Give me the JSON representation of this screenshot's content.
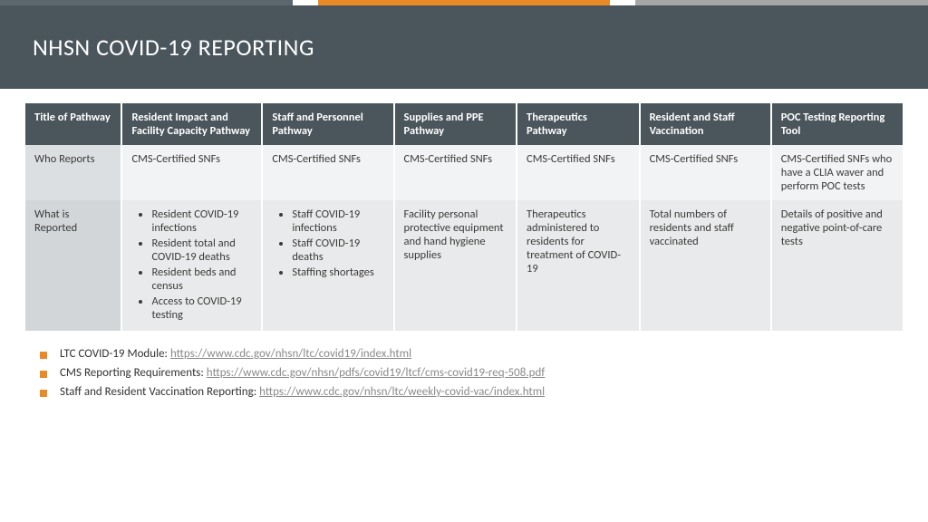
{
  "colors": {
    "header_bg": "#4a555c",
    "accent": "#e88b27",
    "gray_bar": "#a6a6a6",
    "row_label_bg": "#dcdfe1",
    "row1_bg": "#f2f3f4",
    "row2_bg": "#e9eaeb",
    "link_gray": "#8a8a8a",
    "text": "#3a3a3a"
  },
  "title": "NHSN COVID-19 REPORTING",
  "table": {
    "columns": [
      "Title of Pathway",
      "Resident Impact and Facility Capacity Pathway",
      "Staff and Personnel Pathway",
      "Supplies and PPE Pathway",
      "Therapeutics Pathway",
      "Resident and Staff Vaccination",
      "POC Testing Reporting Tool"
    ],
    "row1": {
      "label": "Who Reports",
      "cells": [
        "CMS-Certified SNFs",
        "CMS-Certified SNFs",
        "CMS-Certified SNFs",
        "CMS-Certified SNFs",
        "CMS-Certified SNFs",
        "CMS-Certified SNFs who have a CLIA waver and perform POC tests"
      ]
    },
    "row2": {
      "label": "What is Reported",
      "list1": [
        "Resident COVID-19 infections",
        "Resident total and COVID-19 deaths",
        "Resident beds and census",
        "Access to COVID-19 testing"
      ],
      "list2": [
        "Staff COVID-19 infections",
        "Staff COVID-19 deaths",
        "Staffing shortages"
      ],
      "cells": {
        "c3": "Facility personal protective equipment and hand hygiene supplies",
        "c4": "Therapeutics administered to residents for treatment of COVID-19",
        "c5": "Total numbers of residents and staff vaccinated",
        "c6": "Details of positive and negative point-of-care tests"
      }
    }
  },
  "links": [
    {
      "label": "LTC COVID-19 Module: ",
      "url": "https://www.cdc.gov/nhsn/ltc/covid19/index.html"
    },
    {
      "label": "CMS Reporting Requirements: ",
      "url": "https://www.cdc.gov/nhsn/pdfs/covid19/ltcf/cms-covid19-req-508.pdf"
    },
    {
      "label": "Staff and Resident Vaccination Reporting: ",
      "url": "https://www.cdc.gov/nhsn/ltc/weekly-covid-vac/index.html"
    }
  ]
}
